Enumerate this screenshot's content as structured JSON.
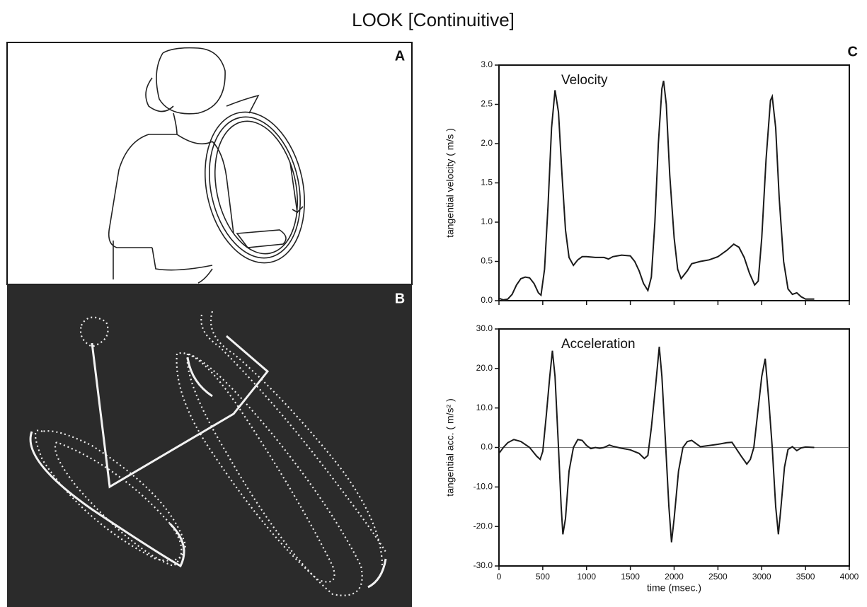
{
  "title": "LOOK [Continuitive]",
  "panels": {
    "a": "A",
    "b": "B"
  },
  "chart_data": [
    {
      "type": "line",
      "panel_label": "C",
      "annotation": "Velocity",
      "ylabel": "tangential velocity ( m/s )",
      "color": "#1a1a1a",
      "x": [
        0,
        50,
        100,
        150,
        200,
        250,
        300,
        350,
        400,
        450,
        480,
        520,
        560,
        600,
        640,
        680,
        720,
        760,
        800,
        850,
        900,
        950,
        1000,
        1100,
        1200,
        1250,
        1300,
        1400,
        1500,
        1550,
        1600,
        1650,
        1700,
        1740,
        1780,
        1820,
        1860,
        1880,
        1910,
        1950,
        2000,
        2040,
        2080,
        2150,
        2200,
        2300,
        2400,
        2500,
        2600,
        2680,
        2740,
        2800,
        2860,
        2920,
        2960,
        3000,
        3050,
        3100,
        3120,
        3160,
        3200,
        3250,
        3300,
        3350,
        3400,
        3450,
        3500,
        3600
      ],
      "values": [
        0.03,
        0.01,
        0.02,
        0.08,
        0.2,
        0.28,
        0.3,
        0.29,
        0.22,
        0.1,
        0.07,
        0.4,
        1.2,
        2.2,
        2.68,
        2.4,
        1.6,
        0.9,
        0.55,
        0.45,
        0.52,
        0.56,
        0.56,
        0.55,
        0.55,
        0.53,
        0.56,
        0.58,
        0.57,
        0.5,
        0.38,
        0.22,
        0.13,
        0.3,
        1.0,
        2.0,
        2.7,
        2.8,
        2.5,
        1.6,
        0.8,
        0.4,
        0.28,
        0.38,
        0.47,
        0.5,
        0.52,
        0.56,
        0.64,
        0.72,
        0.68,
        0.55,
        0.35,
        0.2,
        0.25,
        0.8,
        1.8,
        2.55,
        2.6,
        2.2,
        1.3,
        0.5,
        0.15,
        0.08,
        0.1,
        0.05,
        0.02,
        0.02
      ],
      "xlim": [
        0,
        4000
      ],
      "xticks": [
        0,
        500,
        1000,
        1500,
        2000,
        2500,
        3000,
        3500,
        4000
      ],
      "xtick_labels": false,
      "ylim": [
        0,
        3
      ],
      "yticks": [
        {
          "value": 0,
          "label": "0.0"
        },
        0.5,
        {
          "value": 1,
          "label": "1.0"
        },
        1.5,
        {
          "value": 2,
          "label": "2.0"
        },
        2.5,
        {
          "value": 3,
          "label": "3.0"
        }
      ],
      "zero_line": false
    },
    {
      "type": "line",
      "annotation": "Acceleration",
      "ylabel": "tangential acc. ( m/s² )",
      "xlabel": "time (msec.)",
      "color": "#1a1a1a",
      "x": [
        0,
        50,
        100,
        170,
        250,
        350,
        430,
        470,
        500,
        540,
        580,
        610,
        640,
        680,
        710,
        730,
        760,
        800,
        850,
        900,
        950,
        1000,
        1050,
        1100,
        1150,
        1200,
        1260,
        1300,
        1400,
        1500,
        1600,
        1660,
        1700,
        1740,
        1790,
        1830,
        1860,
        1900,
        1940,
        1970,
        2000,
        2050,
        2100,
        2150,
        2200,
        2250,
        2300,
        2400,
        2500,
        2600,
        2660,
        2700,
        2760,
        2830,
        2870,
        2910,
        2950,
        3000,
        3040,
        3080,
        3120,
        3160,
        3190,
        3220,
        3260,
        3300,
        3350,
        3400,
        3450,
        3500,
        3600
      ],
      "values": [
        -1.5,
        0,
        1.2,
        2,
        1.5,
        0,
        -2.2,
        -3,
        -1,
        8,
        18,
        24.5,
        18,
        0,
        -15,
        -22,
        -18,
        -6,
        0,
        2,
        1.8,
        0.5,
        -0.3,
        0,
        -0.2,
        0,
        0.6,
        0.3,
        -0.2,
        -0.6,
        -1.5,
        -2.8,
        -2,
        5,
        16,
        25.5,
        18,
        2,
        -15,
        -24,
        -18,
        -6,
        0,
        1.5,
        1.8,
        1,
        0.2,
        0.5,
        0.8,
        1.2,
        1.3,
        0,
        -2,
        -4.2,
        -3,
        0,
        8,
        18,
        22.5,
        12,
        0,
        -15,
        -22,
        -15,
        -5,
        -0.5,
        0.2,
        -0.8,
        -0.1,
        0.1,
        0
      ],
      "xlim": [
        0,
        4000
      ],
      "xticks": [
        0,
        500,
        1000,
        1500,
        2000,
        2500,
        3000,
        3500,
        4000
      ],
      "xtick_labels": true,
      "ylim": [
        -30,
        30
      ],
      "yticks": [
        {
          "value": -30,
          "label": "-30.0"
        },
        {
          "value": -20,
          "label": "-20.0"
        },
        {
          "value": -10,
          "label": "-10.0"
        },
        {
          "value": 0,
          "label": "0.0"
        },
        {
          "value": 10,
          "label": "10.0"
        },
        {
          "value": 20,
          "label": "20.0"
        },
        {
          "value": 30,
          "label": "30.0"
        }
      ],
      "zero_line": true
    }
  ]
}
